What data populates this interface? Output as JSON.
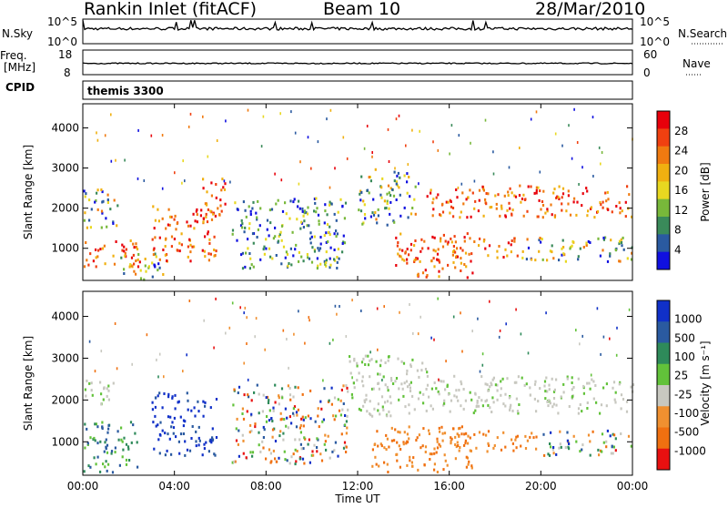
{
  "header": {
    "station": "Rankin Inlet (fitACF)",
    "beam": "Beam 10",
    "date": "28/Mar/2010"
  },
  "summary": {
    "left_labels": [
      "N.Sky",
      "Freq.",
      "[MHz]",
      "CPID"
    ],
    "right_labels": [
      "N.Search",
      "Nave"
    ],
    "nsky_ticks": [
      "10^5",
      "10^0"
    ],
    "nsearch_ticks": [
      "10^5",
      "10^0"
    ],
    "freq_ticks": [
      "18",
      "8"
    ],
    "nave_ticks": [
      "60",
      "0"
    ],
    "cpid_text": "themis 3300"
  },
  "chart_data": [
    {
      "type": "heatmap",
      "name_in_image": "Power",
      "ylabel": "Slant Range [km]",
      "xlabel": "Time UT",
      "xlim": [
        "00:00",
        "24:00"
      ],
      "ylim": [
        200,
        4600
      ],
      "y_ticks": [
        1000,
        2000,
        3000,
        4000
      ],
      "colorbar": {
        "label": "Power [dB]",
        "ticks": [
          "28",
          "24",
          "20",
          "16",
          "12",
          "8",
          "4"
        ],
        "colors_top_to_bottom": [
          "#e8000b",
          "#f04010",
          "#f07a10",
          "#f0b010",
          "#e8d820",
          "#78b83a",
          "#3a8a5a",
          "#2a5aa0",
          "#1010e0"
        ]
      },
      "regions": [
        {
          "t0": 0.0,
          "t1": 2.5,
          "r0": 550,
          "r1": 1250,
          "level": "high"
        },
        {
          "t0": 0.0,
          "t1": 1.5,
          "r0": 1500,
          "r1": 2500,
          "level": "mid"
        },
        {
          "t0": 1.5,
          "t1": 3.5,
          "r0": 250,
          "r1": 900,
          "level": "mid"
        },
        {
          "t0": 3.0,
          "t1": 5.8,
          "r0": 700,
          "r1": 2100,
          "level": "high"
        },
        {
          "t0": 5.0,
          "t1": 6.2,
          "r0": 1800,
          "r1": 2800,
          "level": "high"
        },
        {
          "t0": 6.5,
          "t1": 11.5,
          "r0": 500,
          "r1": 2300,
          "level": "low"
        },
        {
          "t0": 12.0,
          "t1": 14.5,
          "r0": 1600,
          "r1": 3000,
          "level": "mid"
        },
        {
          "t0": 13.5,
          "t1": 17.0,
          "r0": 300,
          "r1": 1400,
          "level": "high"
        },
        {
          "t0": 16.0,
          "t1": 19.0,
          "r0": 800,
          "r1": 1300,
          "level": "high"
        },
        {
          "t0": 15.0,
          "t1": 24.0,
          "r0": 1800,
          "r1": 2600,
          "level": "high"
        },
        {
          "t0": 19.0,
          "t1": 24.0,
          "r0": 700,
          "r1": 1300,
          "level": "mid"
        }
      ]
    },
    {
      "type": "heatmap",
      "name_in_image": "Velocity",
      "ylabel": "Slant Range [km]",
      "xlabel": "Time UT",
      "xlim": [
        "00:00",
        "24:00"
      ],
      "x_ticks": [
        "00:00",
        "04:00",
        "08:00",
        "12:00",
        "16:00",
        "20:00",
        "00:00"
      ],
      "ylim": [
        200,
        4600
      ],
      "y_ticks": [
        1000,
        2000,
        3000,
        4000
      ],
      "colorbar": {
        "label": "Velocity [m s⁻¹]",
        "ticks": [
          "1000",
          "500",
          "100",
          "25",
          "-25",
          "-100",
          "-500",
          "-1000"
        ],
        "colors_top_to_bottom": [
          "#1030c8",
          "#2a5aa0",
          "#2e8a5a",
          "#62c23a",
          "#c8c8c0",
          "#f09030",
          "#f07010",
          "#e81010"
        ]
      },
      "regions": [
        {
          "t0": 0.0,
          "t1": 2.5,
          "r0": 300,
          "r1": 1500,
          "level": "pos_mid"
        },
        {
          "t0": 3.0,
          "t1": 5.8,
          "r0": 700,
          "r1": 2200,
          "level": "pos_high"
        },
        {
          "t0": 0.0,
          "t1": 1.5,
          "r0": 1900,
          "r1": 2500,
          "level": "zero"
        },
        {
          "t0": 6.5,
          "t1": 11.5,
          "r0": 500,
          "r1": 2400,
          "level": "mixed"
        },
        {
          "t0": 11.5,
          "t1": 15.0,
          "r0": 1600,
          "r1": 3100,
          "level": "zero"
        },
        {
          "t0": 12.5,
          "t1": 17.0,
          "r0": 300,
          "r1": 1400,
          "level": "neg"
        },
        {
          "t0": 16.0,
          "t1": 20.0,
          "r0": 800,
          "r1": 1300,
          "level": "neg"
        },
        {
          "t0": 15.0,
          "t1": 24.0,
          "r0": 1700,
          "r1": 2600,
          "level": "zero"
        },
        {
          "t0": 20.0,
          "t1": 24.0,
          "r0": 700,
          "r1": 1300,
          "level": "mixed"
        }
      ]
    }
  ]
}
